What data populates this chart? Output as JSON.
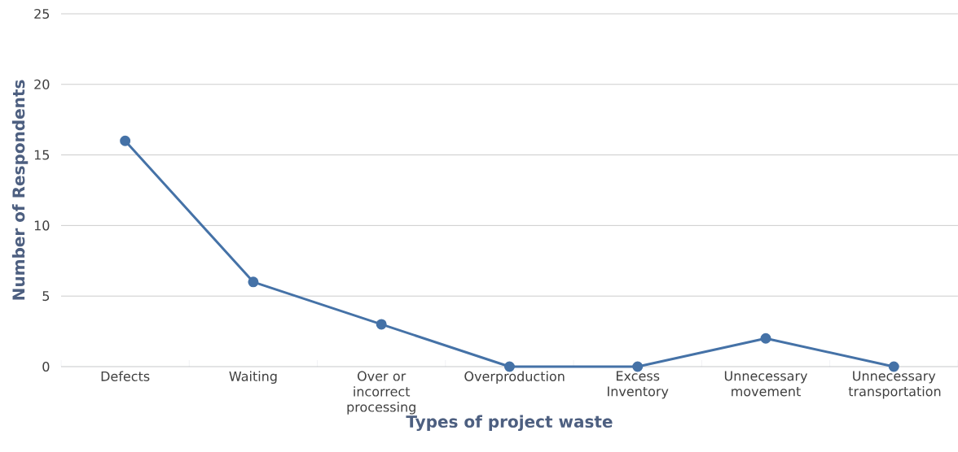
{
  "chart_data": {
    "type": "line",
    "xlabel": "Types of project waste",
    "ylabel": "Number of Respondents",
    "categories": [
      "Defects",
      "Waiting",
      "Over or incorrect processing",
      "Overproduction",
      "Excess Inventory",
      "Unnecessary movement",
      "Unnecessary transportation"
    ],
    "values": [
      16,
      6,
      3,
      0,
      0,
      2,
      0
    ],
    "color": "#4572a7",
    "marker": "circle",
    "ylim": [
      0,
      25
    ],
    "yticks": [
      0,
      5,
      10,
      15,
      20,
      25
    ],
    "grid": "y"
  }
}
